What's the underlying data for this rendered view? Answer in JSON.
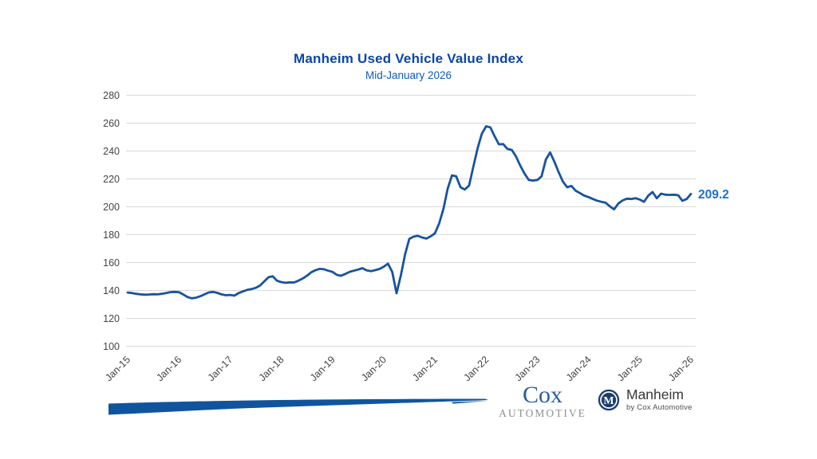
{
  "chart_data": {
    "type": "line",
    "title": "Manheim Used Vehicle Value Index",
    "subtitle": "Mid-January 2026",
    "x_tick_labels": [
      "Jan-15",
      "Jan-16",
      "Jan-17",
      "Jan-18",
      "Jan-19",
      "Jan-20",
      "Jan-21",
      "Jan-22",
      "Jan-23",
      "Jan-24",
      "Jan-25",
      "Jan-26"
    ],
    "months_per_tick": 12,
    "ylim": [
      100,
      280
    ],
    "ytick_step": 20,
    "grid": "horizontal",
    "legend": "none",
    "values": [
      138.5,
      138.2,
      137.6,
      137.2,
      137.0,
      137.1,
      137.3,
      137.2,
      137.6,
      138.2,
      138.8,
      139.0,
      138.8,
      137.2,
      135.3,
      134.4,
      134.8,
      135.8,
      137.2,
      138.6,
      139.0,
      138.3,
      137.2,
      136.6,
      136.8,
      136.3,
      138.1,
      139.3,
      140.4,
      141.0,
      141.9,
      143.5,
      146.5,
      149.5,
      150.2,
      147.0,
      146.0,
      145.5,
      145.8,
      145.7,
      147.0,
      148.6,
      150.5,
      153.0,
      154.5,
      155.5,
      155.2,
      154.2,
      153.3,
      151.2,
      150.5,
      151.8,
      153.3,
      154.2,
      155.0,
      156.0,
      154.4,
      153.8,
      154.6,
      155.4,
      157.0,
      159.2,
      153.3,
      138.0,
      150.5,
      165.8,
      177.0,
      178.6,
      179.2,
      178.0,
      177.2,
      178.8,
      181.0,
      188.0,
      198.5,
      213.0,
      222.5,
      221.8,
      214.0,
      212.4,
      215.2,
      228.6,
      241.9,
      252.4,
      257.7,
      257.0,
      250.5,
      244.8,
      245.0,
      241.5,
      240.8,
      236.2,
      229.5,
      223.8,
      219.2,
      218.8,
      219.2,
      221.9,
      234.0,
      239.0,
      232.4,
      224.8,
      218.1,
      214.0,
      215.0,
      211.5,
      209.8,
      208.0,
      207.0,
      205.6,
      204.4,
      203.6,
      202.9,
      200.3,
      198.2,
      202.4,
      204.6,
      205.8,
      205.6,
      206.2,
      205.2,
      203.6,
      208.0,
      210.6,
      206.1,
      209.4,
      208.7,
      208.5,
      208.7,
      208.3,
      204.3,
      205.6,
      209.2
    ],
    "end_label": {
      "text": "209.2",
      "value": 209.2,
      "color": "#1a6fd4"
    }
  },
  "colors": {
    "title": "#0a46a8",
    "subtitle": "#0d59c4",
    "line": "#17539f",
    "end_label": "#1a6fd4",
    "grid": "#d9d9d9",
    "tick_text": "#454545",
    "brush": "#10549e",
    "cox_blue": "#2a5d9f",
    "cox_gray": "#8f8f8f",
    "manheim_navy": "#1c3e6e"
  },
  "footer": {
    "cox_logo": {
      "line1": "Cox",
      "line2": "AUTOMOTIVE"
    },
    "manheim_logo": {
      "name": "Manheim",
      "tagline": "by Cox Automotive",
      "monogram": "M"
    }
  }
}
